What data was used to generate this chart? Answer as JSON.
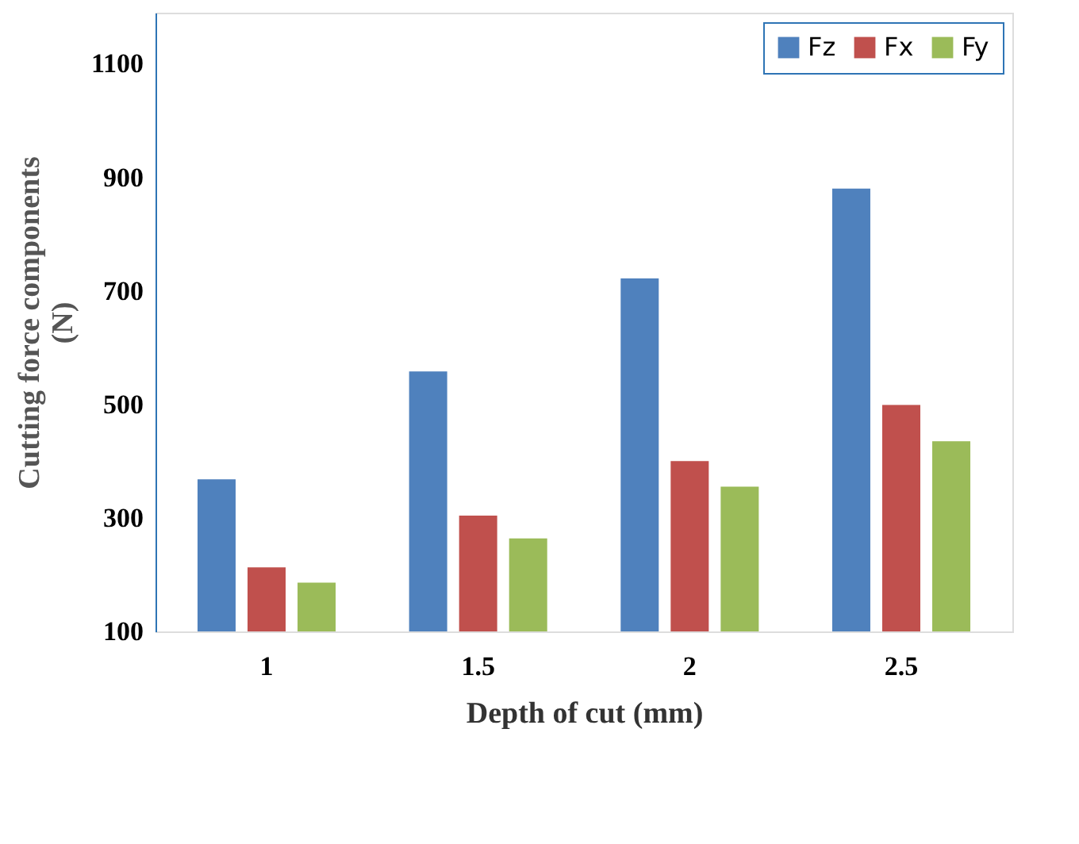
{
  "chart_data": {
    "type": "bar",
    "xlabel": "Depth of cut (mm)",
    "ylabel": "Cutting force components (N)",
    "categories": [
      "1",
      "1.5",
      "2",
      "2.5"
    ],
    "series": [
      {
        "name": "Fz",
        "color": "#4f81bd",
        "values": [
          368,
          558,
          722,
          880
        ]
      },
      {
        "name": "Fx",
        "color": "#c0504d",
        "values": [
          213,
          304,
          400,
          499
        ]
      },
      {
        "name": "Fy",
        "color": "#9bbb59",
        "values": [
          186,
          264,
          355,
          435
        ]
      }
    ],
    "ylim": [
      100,
      1190
    ],
    "yticks": [
      100,
      300,
      500,
      700,
      900,
      1100
    ],
    "grid": false,
    "legend": "top right"
  }
}
